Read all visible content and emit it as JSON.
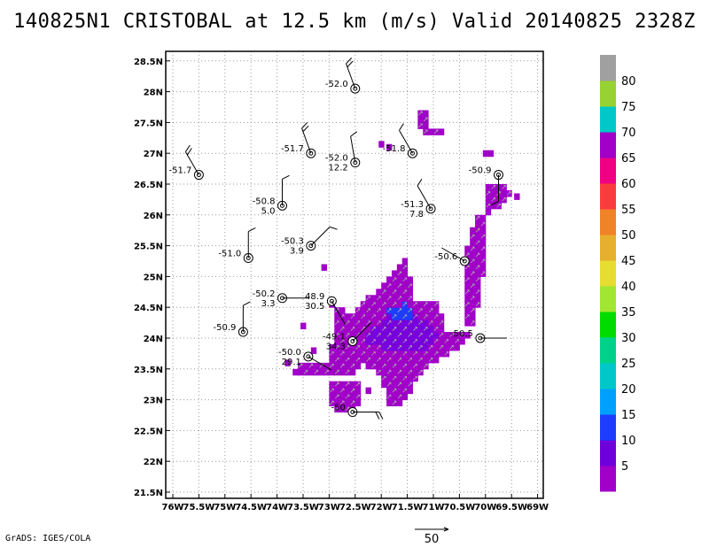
{
  "header": {
    "title": "140825N1 CRISTOBAL at 12.5 km (m/s) Valid 20140825 2328Z"
  },
  "footer": {
    "credit": "GrADS: IGES/COLA"
  },
  "chart_data": {
    "type": "heatmap",
    "title": "140825N1 CRISTOBAL at 12.5 km (m/s) Valid 20140825 2328Z",
    "xlim": [
      -76,
      -68.75
    ],
    "ylim": [
      21.5,
      28.5
    ],
    "grid": true,
    "x_ticks": [
      {
        "value": -76,
        "label": "76W"
      },
      {
        "value": -75.5,
        "label": "75.5W"
      },
      {
        "value": -75,
        "label": "75W"
      },
      {
        "value": -74.5,
        "label": "74.5W"
      },
      {
        "value": -74,
        "label": "74W"
      },
      {
        "value": -73.5,
        "label": "73.5W"
      },
      {
        "value": -73,
        "label": "73W"
      },
      {
        "value": -72.5,
        "label": "72.5W"
      },
      {
        "value": -72,
        "label": "72W"
      },
      {
        "value": -71.5,
        "label": "71.5W"
      },
      {
        "value": -71,
        "label": "71W"
      },
      {
        "value": -70.5,
        "label": "70.5W"
      },
      {
        "value": -70,
        "label": "70W"
      },
      {
        "value": -69.5,
        "label": "69.5W"
      },
      {
        "value": -69,
        "label": "69W"
      }
    ],
    "y_ticks": [
      {
        "value": 21.5,
        "label": "21.5N"
      },
      {
        "value": 22,
        "label": "22N"
      },
      {
        "value": 22.5,
        "label": "22.5N"
      },
      {
        "value": 23,
        "label": "23N"
      },
      {
        "value": 23.5,
        "label": "23.5N"
      },
      {
        "value": 24,
        "label": "24N"
      },
      {
        "value": 24.5,
        "label": "24.5N"
      },
      {
        "value": 25,
        "label": "25N"
      },
      {
        "value": 25.5,
        "label": "25.5N"
      },
      {
        "value": 26,
        "label": "26N"
      },
      {
        "value": 26.5,
        "label": "26.5N"
      },
      {
        "value": 27,
        "label": "27N"
      },
      {
        "value": 27.5,
        "label": "27.5N"
      },
      {
        "value": 28,
        "label": "28N"
      },
      {
        "value": 28.5,
        "label": "28.5N"
      }
    ],
    "colorbar": {
      "labels": [
        "5",
        "10",
        "15",
        "20",
        "25",
        "30",
        "35",
        "40",
        "45",
        "50",
        "55",
        "60",
        "65",
        "70",
        "75",
        "80"
      ],
      "colors": [
        "#a000c8",
        "#6e00dc",
        "#1e3cff",
        "#00a0ff",
        "#00c8c8",
        "#00d28c",
        "#00dc00",
        "#a0e632",
        "#e6dc32",
        "#e6af2d",
        "#f08228",
        "#fa3c3c",
        "#f00082",
        "#a000c8",
        "#00c8c8",
        "#96d232",
        "#a0a0a0"
      ]
    },
    "scale_vector": {
      "label": "50",
      "value": 50
    },
    "stations": [
      {
        "lon": -75.5,
        "lat": 26.65,
        "labels": [
          "-51.7"
        ],
        "barb": {
          "dir": 330,
          "flags": 2
        }
      },
      {
        "lon": -74.55,
        "lat": 25.3,
        "labels": [
          "-51.0"
        ],
        "barb": {
          "dir": 0,
          "flags": 1
        }
      },
      {
        "lon": -74.65,
        "lat": 24.1,
        "labels": [
          "-50.9"
        ],
        "barb": {
          "dir": 0,
          "flags": 1
        }
      },
      {
        "lon": -73.9,
        "lat": 26.15,
        "labels": [
          "-50.8",
          "5.0"
        ],
        "barb": {
          "dir": 0,
          "flags": 1
        }
      },
      {
        "lon": -73.9,
        "lat": 24.65,
        "labels": [
          "-50.2",
          "3.3"
        ],
        "barb": {
          "dir": 90,
          "flags": 0
        }
      },
      {
        "lon": -73.35,
        "lat": 27.0,
        "labels": [
          "-51.7"
        ],
        "barb": {
          "dir": 340,
          "flags": 2
        }
      },
      {
        "lon": -73.35,
        "lat": 25.5,
        "labels": [
          "-50.3",
          "3.9"
        ],
        "barb": {
          "dir": 45,
          "flags": 1
        }
      },
      {
        "lon": -72.95,
        "lat": 24.6,
        "labels": [
          "48.9",
          "30.5"
        ],
        "barb": {
          "dir": 150,
          "flags": 0
        }
      },
      {
        "lon": -73.4,
        "lat": 23.7,
        "labels": [
          "-50.0",
          "29.1"
        ],
        "barb": {
          "dir": 120,
          "flags": 0
        }
      },
      {
        "lon": -72.55,
        "lat": 23.95,
        "labels": [
          "-49.1",
          "34.3"
        ],
        "barb": {
          "dir": 45,
          "flags": 0
        }
      },
      {
        "lon": -72.5,
        "lat": 28.05,
        "labels": [
          "-52.0"
        ],
        "barb": {
          "dir": 340,
          "flags": 2
        }
      },
      {
        "lon": -72.5,
        "lat": 26.85,
        "labels": [
          "-52.0",
          "12.2"
        ],
        "barb": {
          "dir": 350,
          "flags": 1
        }
      },
      {
        "lon": -72.55,
        "lat": 22.8,
        "labels": [
          "-50"
        ],
        "barb": {
          "dir": 90,
          "flags": 2
        }
      },
      {
        "lon": -71.4,
        "lat": 27.0,
        "labels": [
          "-51.8"
        ],
        "barb": {
          "dir": 330,
          "flags": 1
        }
      },
      {
        "lon": -71.05,
        "lat": 26.1,
        "labels": [
          "-51.3",
          "7.8"
        ],
        "barb": {
          "dir": 330,
          "flags": 1
        }
      },
      {
        "lon": -70.4,
        "lat": 25.25,
        "labels": [
          "-50.6"
        ],
        "barb": {
          "dir": 300,
          "flags": 0
        }
      },
      {
        "lon": -70.1,
        "lat": 24.0,
        "labels": [
          "-50.5"
        ],
        "barb": {
          "dir": 90,
          "flags": 0
        }
      },
      {
        "lon": -69.75,
        "lat": 26.65,
        "labels": [
          "-50.9"
        ],
        "barb": {
          "dir": 180,
          "flags": 1
        }
      }
    ]
  }
}
